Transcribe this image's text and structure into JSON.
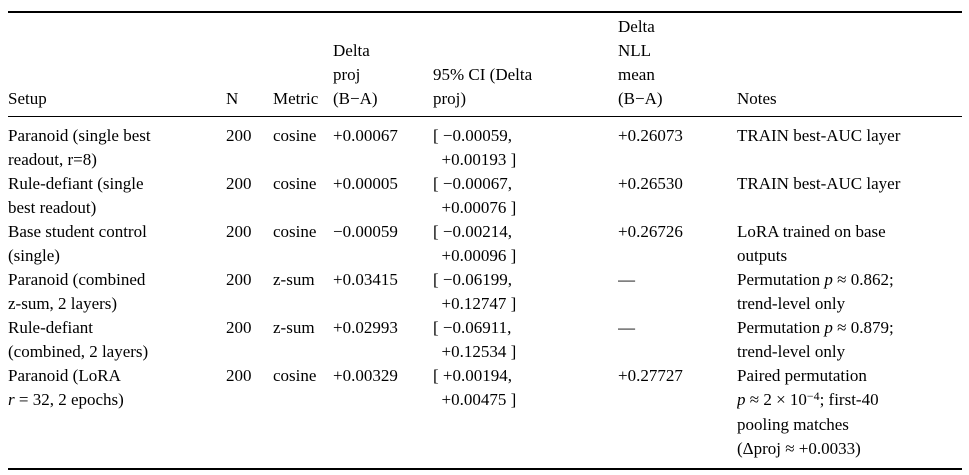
{
  "page": {
    "background_color": "#ffffff",
    "text_color": "#000000",
    "rule_color": "#000000"
  },
  "table": {
    "columns": [
      {
        "key": "setup",
        "label": "Setup"
      },
      {
        "key": "n",
        "label": "N"
      },
      {
        "key": "metric",
        "label": "Metric"
      },
      {
        "key": "delta_proj",
        "label": "Delta\nproj\n(B−A)"
      },
      {
        "key": "ci",
        "label": "95% CI (Delta\nproj)"
      },
      {
        "key": "delta_nll",
        "label": "Delta\nNLL\nmean\n(B−A)"
      },
      {
        "key": "notes",
        "label": "Notes"
      }
    ],
    "rows": [
      {
        "setup": "Paranoid (single best\nreadout, r=8)",
        "n": "200",
        "metric": "cosine",
        "delta_proj": "+0.00067",
        "ci": "[ −0.00059,\n  +0.00193 ]",
        "delta_nll": "+0.26073",
        "notes": "TRAIN best-AUC layer"
      },
      {
        "setup": "Rule-defiant (single\nbest readout)",
        "n": "200",
        "metric": "cosine",
        "delta_proj": "+0.00005",
        "ci": "[ −0.00067,\n  +0.00076 ]",
        "delta_nll": "+0.26530",
        "notes": "TRAIN best-AUC layer"
      },
      {
        "setup": "Base student control\n(single)",
        "n": "200",
        "metric": "cosine",
        "delta_proj": "−0.00059",
        "ci": "[ −0.00214,\n  +0.00096 ]",
        "delta_nll": "+0.26726",
        "notes": "LoRA trained on base\noutputs"
      },
      {
        "setup": "Paranoid (combined\nz-sum, 2 layers)",
        "n": "200",
        "metric": "z-sum",
        "delta_proj": "+0.03415",
        "ci": "[ −0.06199,\n  +0.12747 ]",
        "delta_nll": "—",
        "notes": [
          {
            "t": "Permutation "
          },
          {
            "t": "p",
            "s": "i"
          },
          {
            "t": " ≈ 0.862;\ntrend-level only"
          }
        ]
      },
      {
        "setup": "Rule-defiant\n(combined, 2 layers)",
        "n": "200",
        "metric": "z-sum",
        "delta_proj": "+0.02993",
        "ci": "[ −0.06911,\n  +0.12534 ]",
        "delta_nll": "—",
        "notes": [
          {
            "t": "Permutation "
          },
          {
            "t": "p",
            "s": "i"
          },
          {
            "t": " ≈ 0.879;\ntrend-level only"
          }
        ]
      },
      {
        "setup": [
          {
            "t": "Paranoid (LoRA\n"
          },
          {
            "t": "r",
            "s": "i"
          },
          {
            "t": " = 32, 2 epochs)"
          }
        ],
        "n": "200",
        "metric": "cosine",
        "delta_proj": "+0.00329",
        "ci": "[ +0.00194,\n  +0.00475 ]",
        "delta_nll": "+0.27727",
        "notes": [
          {
            "t": "Paired permutation\n"
          },
          {
            "t": "p",
            "s": "i"
          },
          {
            "t": " ≈ 2 × 10"
          },
          {
            "t": "−4",
            "s": "sup"
          },
          {
            "t": "; first-40\npooling matches\n(Δproj ≈ +0.0033)"
          }
        ]
      }
    ]
  }
}
